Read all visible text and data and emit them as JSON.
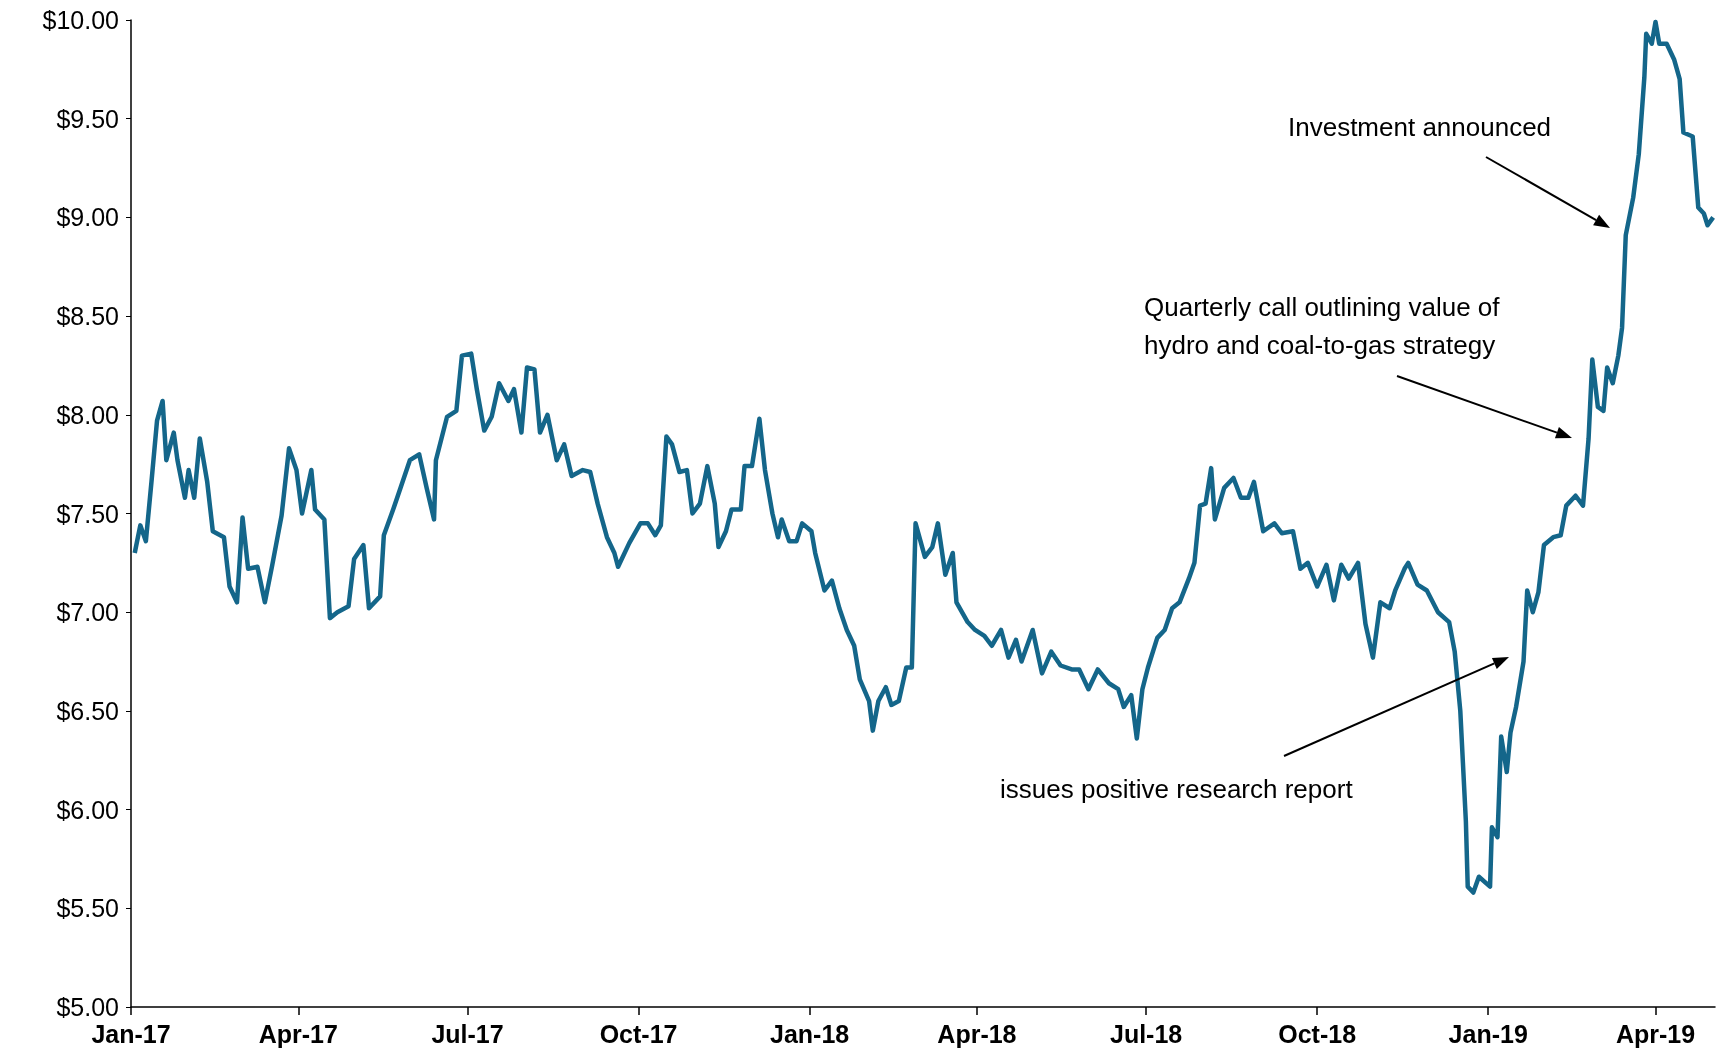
{
  "chart_data": {
    "type": "line",
    "marker": "none",
    "grid": false,
    "xlim": [
      "2017-01-01",
      "2019-05-03"
    ],
    "xticks": [
      {
        "value": "2017-01-01",
        "label": "Jan-17"
      },
      {
        "value": "2017-04-01",
        "label": "Apr-17"
      },
      {
        "value": "2017-07-01",
        "label": "Jul-17"
      },
      {
        "value": "2017-10-01",
        "label": "Oct-17"
      },
      {
        "value": "2018-01-01",
        "label": "Jan-18"
      },
      {
        "value": "2018-04-01",
        "label": "Apr-18"
      },
      {
        "value": "2018-07-01",
        "label": "Jul-18"
      },
      {
        "value": "2018-10-01",
        "label": "Oct-18"
      },
      {
        "value": "2019-01-01",
        "label": "Jan-19"
      },
      {
        "value": "2019-04-01",
        "label": "Apr-19"
      }
    ],
    "ylim": [
      5,
      10
    ],
    "yticks": [
      {
        "value": 5,
        "label": "$5.00"
      },
      {
        "value": 5.5,
        "label": "$5.50"
      },
      {
        "value": 6,
        "label": "$6.00"
      },
      {
        "value": 6.5,
        "label": "$6.50"
      },
      {
        "value": 7,
        "label": "$7.00"
      },
      {
        "value": 7.5,
        "label": "$7.50"
      },
      {
        "value": 8,
        "label": "$8.00"
      },
      {
        "value": 8.5,
        "label": "$8.50"
      },
      {
        "value": 9,
        "label": "$9.00"
      },
      {
        "value": 9.5,
        "label": "$9.50"
      },
      {
        "value": 10,
        "label": "$10.00"
      }
    ],
    "annotations": [
      "Investment announced",
      "Quarterly call outlining value of hydro and coal-to-gas strategy",
      "issues positive research report"
    ],
    "series": [
      {
        "color": "#14668a",
        "x": [
          "2017-01-03",
          "2017-01-06",
          "2017-01-09",
          "2017-01-12",
          "2017-01-15",
          "2017-01-18",
          "2017-01-20",
          "2017-01-24",
          "2017-01-26",
          "2017-01-30",
          "2017-02-01",
          "2017-02-04",
          "2017-02-07",
          "2017-02-11",
          "2017-02-14",
          "2017-02-20",
          "2017-02-23",
          "2017-02-27",
          "2017-03-02",
          "2017-03-05",
          "2017-03-10",
          "2017-03-14",
          "2017-03-18",
          "2017-03-23",
          "2017-03-27",
          "2017-03-31",
          "2017-04-03",
          "2017-04-08",
          "2017-04-10",
          "2017-04-15",
          "2017-04-18",
          "2017-04-22",
          "2017-04-28",
          "2017-05-01",
          "2017-05-06",
          "2017-05-09",
          "2017-05-15",
          "2017-05-17",
          "2017-05-22",
          "2017-05-26",
          "2017-05-31",
          "2017-06-05",
          "2017-06-09",
          "2017-06-13",
          "2017-06-14",
          "2017-06-20",
          "2017-06-25",
          "2017-06-28",
          "2017-07-03",
          "2017-07-06",
          "2017-07-10",
          "2017-07-14",
          "2017-07-18",
          "2017-07-23",
          "2017-07-26",
          "2017-07-30",
          "2017-08-02",
          "2017-08-06",
          "2017-08-09",
          "2017-08-13",
          "2017-08-18",
          "2017-08-22",
          "2017-08-26",
          "2017-09-01",
          "2017-09-05",
          "2017-09-09",
          "2017-09-14",
          "2017-09-18",
          "2017-09-20",
          "2017-09-26",
          "2017-10-02",
          "2017-10-06",
          "2017-10-10",
          "2017-10-13",
          "2017-10-16",
          "2017-10-19",
          "2017-10-23",
          "2017-10-27",
          "2017-10-30",
          "2017-11-03",
          "2017-11-07",
          "2017-11-11",
          "2017-11-13",
          "2017-11-17",
          "2017-11-20",
          "2017-11-25",
          "2017-11-27",
          "2017-12-01",
          "2017-12-05",
          "2017-12-08",
          "2017-12-12",
          "2017-12-15",
          "2017-12-17",
          "2017-12-21",
          "2017-12-25",
          "2017-12-28",
          "2018-01-02",
          "2018-01-04",
          "2018-01-09",
          "2018-01-13",
          "2018-01-17",
          "2018-01-21",
          "2018-01-25",
          "2018-01-28",
          "2018-02-02",
          "2018-02-04",
          "2018-02-07",
          "2018-02-11",
          "2018-02-14",
          "2018-02-18",
          "2018-02-22",
          "2018-02-25",
          "2018-02-27",
          "2018-03-04",
          "2018-03-08",
          "2018-03-11",
          "2018-03-15",
          "2018-03-19",
          "2018-03-21",
          "2018-03-27",
          "2018-03-31",
          "2018-04-05",
          "2018-04-09",
          "2018-04-14",
          "2018-04-18",
          "2018-04-22",
          "2018-04-25",
          "2018-05-01",
          "2018-05-06",
          "2018-05-11",
          "2018-05-16",
          "2018-05-22",
          "2018-05-26",
          "2018-05-31",
          "2018-06-05",
          "2018-06-11",
          "2018-06-16",
          "2018-06-19",
          "2018-06-23",
          "2018-06-26",
          "2018-06-29",
          "2018-07-02",
          "2018-07-07",
          "2018-07-11",
          "2018-07-15",
          "2018-07-19",
          "2018-07-24",
          "2018-07-27",
          "2018-07-30",
          "2018-08-02",
          "2018-08-05",
          "2018-08-07",
          "2018-08-12",
          "2018-08-17",
          "2018-08-21",
          "2018-08-25",
          "2018-08-28",
          "2018-09-02",
          "2018-09-08",
          "2018-09-12",
          "2018-09-18",
          "2018-09-22",
          "2018-09-26",
          "2018-10-01",
          "2018-10-06",
          "2018-10-10",
          "2018-10-14",
          "2018-10-18",
          "2018-10-23",
          "2018-10-27",
          "2018-10-31",
          "2018-11-04",
          "2018-11-09",
          "2018-11-12",
          "2018-11-17",
          "2018-11-19",
          "2018-11-24",
          "2018-11-29",
          "2018-12-05",
          "2018-12-11",
          "2018-12-14",
          "2018-12-17",
          "2018-12-20",
          "2018-12-21",
          "2018-12-24",
          "2018-12-27",
          "2019-01-02",
          "2019-01-03",
          "2019-01-06",
          "2019-01-08",
          "2019-01-11",
          "2019-01-13",
          "2019-01-16",
          "2019-01-20",
          "2019-01-22",
          "2019-01-25",
          "2019-01-28",
          "2019-01-31",
          "2019-02-05",
          "2019-02-09",
          "2019-02-12",
          "2019-02-17",
          "2019-02-21",
          "2019-02-24",
          "2019-02-26",
          "2019-03-01",
          "2019-03-04",
          "2019-03-06",
          "2019-03-09",
          "2019-03-12",
          "2019-03-14",
          "2019-03-16",
          "2019-03-20",
          "2019-03-23",
          "2019-03-26",
          "2019-03-27",
          "2019-03-30",
          "2019-04-01",
          "2019-04-03",
          "2019-04-07",
          "2019-04-11",
          "2019-04-14",
          "2019-04-16",
          "2019-04-21",
          "2019-04-24",
          "2019-04-27",
          "2019-04-29",
          "2019-05-02"
        ],
        "values": [
          7.3,
          7.44,
          7.36,
          7.66,
          7.97,
          8.07,
          7.77,
          7.91,
          7.77,
          7.58,
          7.72,
          7.58,
          7.88,
          7.66,
          7.41,
          7.38,
          7.13,
          7.05,
          7.48,
          7.22,
          7.23,
          7.05,
          7.24,
          7.49,
          7.83,
          7.72,
          7.5,
          7.72,
          7.52,
          7.47,
          6.97,
          7.0,
          7.03,
          7.27,
          7.34,
          7.02,
          7.08,
          7.39,
          7.52,
          7.63,
          7.77,
          7.8,
          7.63,
          7.47,
          7.77,
          7.99,
          8.02,
          8.3,
          8.31,
          8.13,
          7.92,
          7.99,
          8.16,
          8.07,
          8.13,
          7.91,
          8.24,
          8.23,
          7.91,
          8.0,
          7.77,
          7.85,
          7.69,
          7.72,
          7.71,
          7.55,
          7.38,
          7.3,
          7.23,
          7.35,
          7.45,
          7.45,
          7.39,
          7.44,
          7.89,
          7.85,
          7.71,
          7.72,
          7.5,
          7.55,
          7.74,
          7.55,
          7.33,
          7.41,
          7.52,
          7.52,
          7.74,
          7.74,
          7.98,
          7.72,
          7.5,
          7.38,
          7.47,
          7.36,
          7.36,
          7.45,
          7.41,
          7.3,
          7.11,
          7.16,
          7.02,
          6.91,
          6.83,
          6.66,
          6.55,
          6.4,
          6.55,
          6.62,
          6.53,
          6.55,
          6.72,
          6.72,
          7.45,
          7.28,
          7.33,
          7.45,
          7.19,
          7.3,
          7.05,
          6.95,
          6.91,
          6.88,
          6.83,
          6.91,
          6.77,
          6.86,
          6.75,
          6.91,
          6.69,
          6.8,
          6.73,
          6.71,
          6.71,
          6.61,
          6.71,
          6.64,
          6.61,
          6.52,
          6.58,
          6.36,
          6.61,
          6.72,
          6.87,
          6.91,
          7.02,
          7.05,
          7.17,
          7.25,
          7.54,
          7.55,
          7.73,
          7.47,
          7.63,
          7.68,
          7.58,
          7.58,
          7.66,
          7.41,
          7.45,
          7.4,
          7.41,
          7.22,
          7.25,
          7.13,
          7.24,
          7.06,
          7.24,
          7.17,
          7.25,
          6.94,
          6.77,
          7.05,
          7.02,
          7.11,
          7.22,
          7.25,
          7.14,
          7.11,
          7.0,
          6.95,
          6.8,
          6.5,
          5.94,
          5.61,
          5.58,
          5.66,
          5.61,
          5.91,
          5.86,
          6.37,
          6.19,
          6.39,
          6.52,
          6.75,
          7.11,
          7.0,
          7.1,
          7.34,
          7.38,
          7.39,
          7.54,
          7.59,
          7.54,
          7.88,
          8.28,
          8.04,
          8.02,
          8.24,
          8.16,
          8.3,
          8.44,
          8.91,
          9.1,
          9.32,
          9.71,
          9.93,
          9.88,
          9.99,
          9.88,
          9.88,
          9.8,
          9.7,
          9.43,
          9.41,
          9.05,
          9.02,
          8.96,
          9.0
        ]
      }
    ]
  }
}
